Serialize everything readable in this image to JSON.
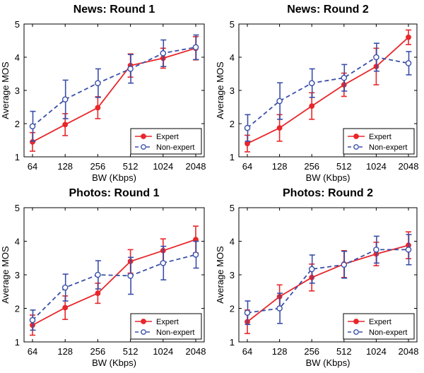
{
  "chart_data": [
    {
      "type": "line",
      "title": "News: Round 1",
      "xlabel": "BW (Kbps)",
      "ylabel": "Average MOS",
      "x": [
        "64",
        "128",
        "256",
        "512",
        "1024",
        "2048"
      ],
      "ylim": [
        1,
        5
      ],
      "yticks": [
        "1",
        "2",
        "3",
        "4",
        "5"
      ],
      "legend_position": "bottom-right",
      "series": [
        {
          "name": "Expert",
          "color": "#e8262b",
          "style": "solid",
          "marker": "filled-circle",
          "values": [
            1.45,
            1.97,
            2.48,
            3.75,
            3.97,
            4.27
          ],
          "err": [
            0.28,
            0.33,
            0.33,
            0.35,
            0.3,
            0.35
          ]
        },
        {
          "name": "Non-expert",
          "color": "#3a4fa8",
          "style": "dashed",
          "marker": "open-circle",
          "values": [
            1.92,
            2.73,
            3.22,
            3.65,
            4.12,
            4.3
          ],
          "err": [
            0.45,
            0.58,
            0.43,
            0.43,
            0.4,
            0.37
          ]
        }
      ]
    },
    {
      "type": "line",
      "title": "News: Round 2",
      "xlabel": "BW (Kbps)",
      "ylabel": "Average MOS",
      "x": [
        "64",
        "128",
        "256",
        "512",
        "1024",
        "2048"
      ],
      "ylim": [
        1,
        5
      ],
      "yticks": [
        "1",
        "2",
        "3",
        "4",
        "5"
      ],
      "legend_position": "bottom-right",
      "series": [
        {
          "name": "Expert",
          "color": "#e8262b",
          "style": "solid",
          "marker": "filled-circle",
          "values": [
            1.4,
            1.87,
            2.53,
            3.17,
            3.72,
            4.6
          ],
          "err": [
            0.25,
            0.4,
            0.4,
            0.35,
            0.55,
            0.22
          ]
        },
        {
          "name": "Non-expert",
          "color": "#3a4fa8",
          "style": "dashed",
          "marker": "open-circle",
          "values": [
            1.87,
            2.68,
            3.22,
            3.38,
            4.0,
            3.82
          ],
          "err": [
            0.4,
            0.55,
            0.43,
            0.4,
            0.42,
            0.35
          ]
        }
      ]
    },
    {
      "type": "line",
      "title": "Photos: Round 1",
      "xlabel": "BW (Kbps)",
      "ylabel": "Average MOS",
      "x": [
        "64",
        "128",
        "256",
        "512",
        "1024",
        "2048"
      ],
      "ylim": [
        1,
        5
      ],
      "yticks": [
        "1",
        "2",
        "3",
        "4",
        "5"
      ],
      "legend_position": "bottom-right",
      "series": [
        {
          "name": "Expert",
          "color": "#e8262b",
          "style": "solid",
          "marker": "filled-circle",
          "values": [
            1.5,
            2.02,
            2.45,
            3.4,
            3.72,
            4.05
          ],
          "err": [
            0.3,
            0.35,
            0.3,
            0.35,
            0.35,
            0.4
          ]
        },
        {
          "name": "Non-expert",
          "color": "#3a4fa8",
          "style": "dashed",
          "marker": "open-circle",
          "values": [
            1.65,
            2.62,
            3.0,
            2.97,
            3.35,
            3.6
          ],
          "err": [
            0.3,
            0.4,
            0.42,
            0.55,
            0.5,
            0.4
          ]
        }
      ]
    },
    {
      "type": "line",
      "title": "Photos: Round 2",
      "xlabel": "BW (Kbps)",
      "ylabel": "Average MOS",
      "x": [
        "64",
        "128",
        "256",
        "512",
        "1024",
        "2048"
      ],
      "ylim": [
        1,
        5
      ],
      "yticks": [
        "1",
        "2",
        "3",
        "4",
        "5"
      ],
      "legend_position": "bottom-right",
      "series": [
        {
          "name": "Expert",
          "color": "#e8262b",
          "style": "solid",
          "marker": "filled-circle",
          "values": [
            1.6,
            2.35,
            2.92,
            3.32,
            3.62,
            3.88
          ],
          "err": [
            0.35,
            0.35,
            0.4,
            0.4,
            0.35,
            0.4
          ]
        },
        {
          "name": "Non-expert",
          "color": "#3a4fa8",
          "style": "dashed",
          "marker": "open-circle",
          "values": [
            1.87,
            2.0,
            3.17,
            3.3,
            3.75,
            3.75
          ],
          "err": [
            0.35,
            0.45,
            0.42,
            0.4,
            0.4,
            0.45
          ]
        }
      ]
    }
  ]
}
